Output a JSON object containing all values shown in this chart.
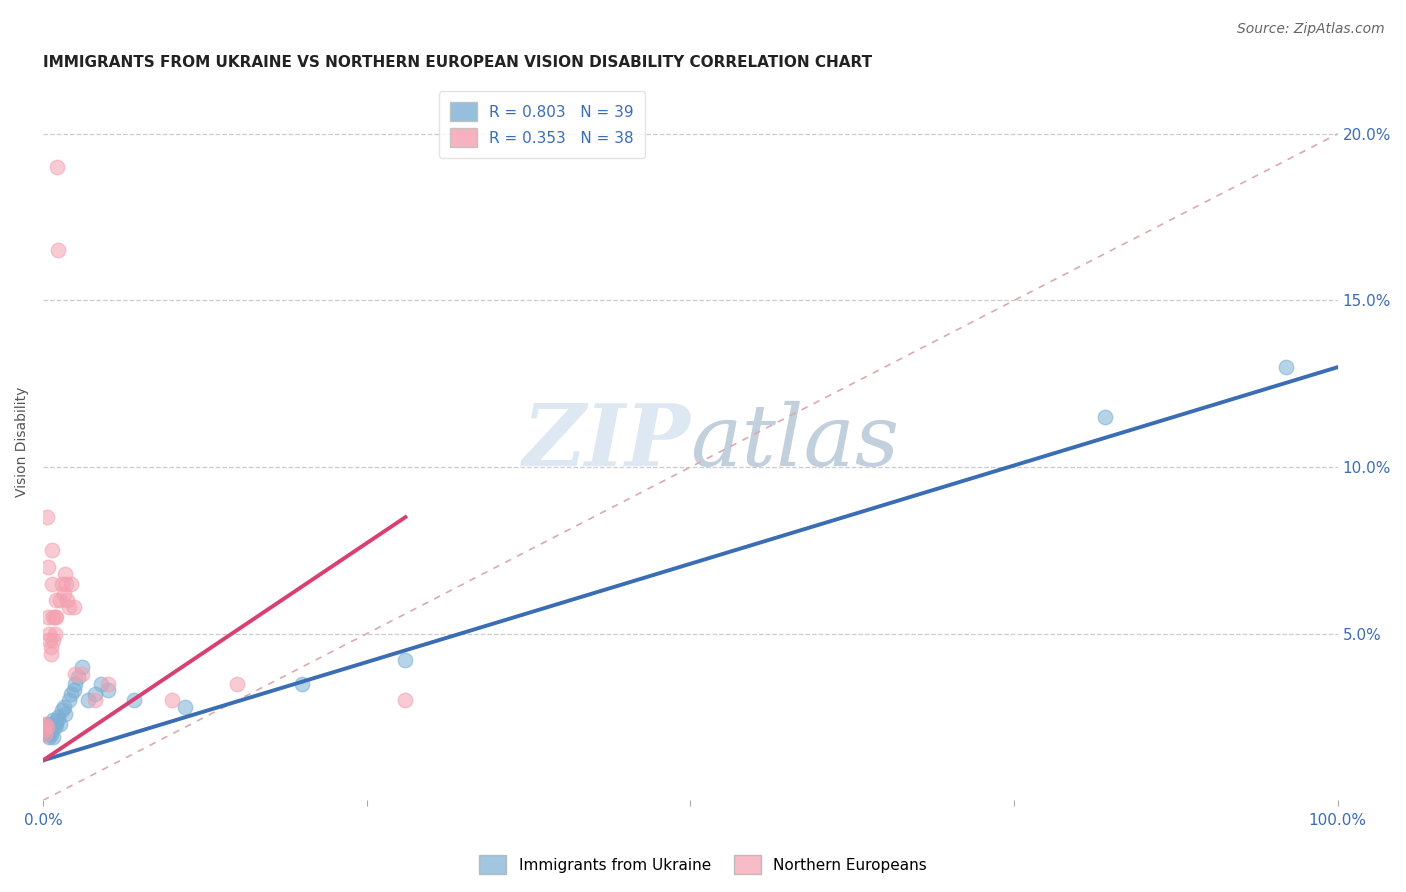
{
  "title": "IMMIGRANTS FROM UKRAINE VS NORTHERN EUROPEAN VISION DISABILITY CORRELATION CHART",
  "source": "Source: ZipAtlas.com",
  "ylabel": "Vision Disability",
  "xlim": [
    0,
    1.0
  ],
  "ylim": [
    0,
    0.215
  ],
  "yticks_right": [
    0.0,
    0.05,
    0.1,
    0.15,
    0.2
  ],
  "ytick_labels_right": [
    "",
    "5.0%",
    "10.0%",
    "15.0%",
    "20.0%"
  ],
  "R_blue": 0.803,
  "N_blue": 39,
  "R_pink": 0.353,
  "N_pink": 38,
  "blue_color": "#7BAFD4",
  "pink_color": "#F4A0B0",
  "blue_line_color": "#3B6DB5",
  "pink_line_color": "#D94070",
  "blue_scatter": [
    [
      0.001,
      0.022
    ],
    [
      0.002,
      0.021
    ],
    [
      0.002,
      0.02
    ],
    [
      0.003,
      0.022
    ],
    [
      0.003,
      0.021
    ],
    [
      0.004,
      0.023
    ],
    [
      0.004,
      0.02
    ],
    [
      0.005,
      0.022
    ],
    [
      0.005,
      0.019
    ],
    [
      0.006,
      0.021
    ],
    [
      0.006,
      0.02
    ],
    [
      0.007,
      0.023
    ],
    [
      0.007,
      0.022
    ],
    [
      0.008,
      0.024
    ],
    [
      0.008,
      0.019
    ],
    [
      0.009,
      0.022
    ],
    [
      0.01,
      0.023
    ],
    [
      0.011,
      0.024
    ],
    [
      0.012,
      0.025
    ],
    [
      0.013,
      0.023
    ],
    [
      0.015,
      0.027
    ],
    [
      0.016,
      0.028
    ],
    [
      0.017,
      0.026
    ],
    [
      0.02,
      0.03
    ],
    [
      0.022,
      0.032
    ],
    [
      0.024,
      0.033
    ],
    [
      0.025,
      0.035
    ],
    [
      0.027,
      0.037
    ],
    [
      0.03,
      0.04
    ],
    [
      0.035,
      0.03
    ],
    [
      0.04,
      0.032
    ],
    [
      0.045,
      0.035
    ],
    [
      0.05,
      0.033
    ],
    [
      0.07,
      0.03
    ],
    [
      0.11,
      0.028
    ],
    [
      0.2,
      0.035
    ],
    [
      0.28,
      0.042
    ],
    [
      0.82,
      0.115
    ],
    [
      0.96,
      0.13
    ]
  ],
  "pink_scatter": [
    [
      0.001,
      0.022
    ],
    [
      0.001,
      0.021
    ],
    [
      0.002,
      0.023
    ],
    [
      0.002,
      0.02
    ],
    [
      0.003,
      0.022
    ],
    [
      0.003,
      0.085
    ],
    [
      0.004,
      0.07
    ],
    [
      0.004,
      0.055
    ],
    [
      0.005,
      0.05
    ],
    [
      0.005,
      0.048
    ],
    [
      0.006,
      0.046
    ],
    [
      0.006,
      0.044
    ],
    [
      0.007,
      0.075
    ],
    [
      0.007,
      0.065
    ],
    [
      0.008,
      0.055
    ],
    [
      0.008,
      0.048
    ],
    [
      0.009,
      0.055
    ],
    [
      0.009,
      0.05
    ],
    [
      0.01,
      0.06
    ],
    [
      0.01,
      0.055
    ],
    [
      0.011,
      0.19
    ],
    [
      0.012,
      0.165
    ],
    [
      0.013,
      0.06
    ],
    [
      0.015,
      0.065
    ],
    [
      0.016,
      0.062
    ],
    [
      0.017,
      0.068
    ],
    [
      0.018,
      0.065
    ],
    [
      0.019,
      0.06
    ],
    [
      0.02,
      0.058
    ],
    [
      0.022,
      0.065
    ],
    [
      0.024,
      0.058
    ],
    [
      0.025,
      0.038
    ],
    [
      0.03,
      0.038
    ],
    [
      0.04,
      0.03
    ],
    [
      0.05,
      0.035
    ],
    [
      0.1,
      0.03
    ],
    [
      0.15,
      0.035
    ],
    [
      0.28,
      0.03
    ]
  ],
  "background_color": "#FFFFFF",
  "grid_color": "#CCCCCC",
  "title_fontsize": 11,
  "axis_label_fontsize": 10,
  "tick_fontsize": 11,
  "legend_fontsize": 11,
  "source_fontsize": 10
}
